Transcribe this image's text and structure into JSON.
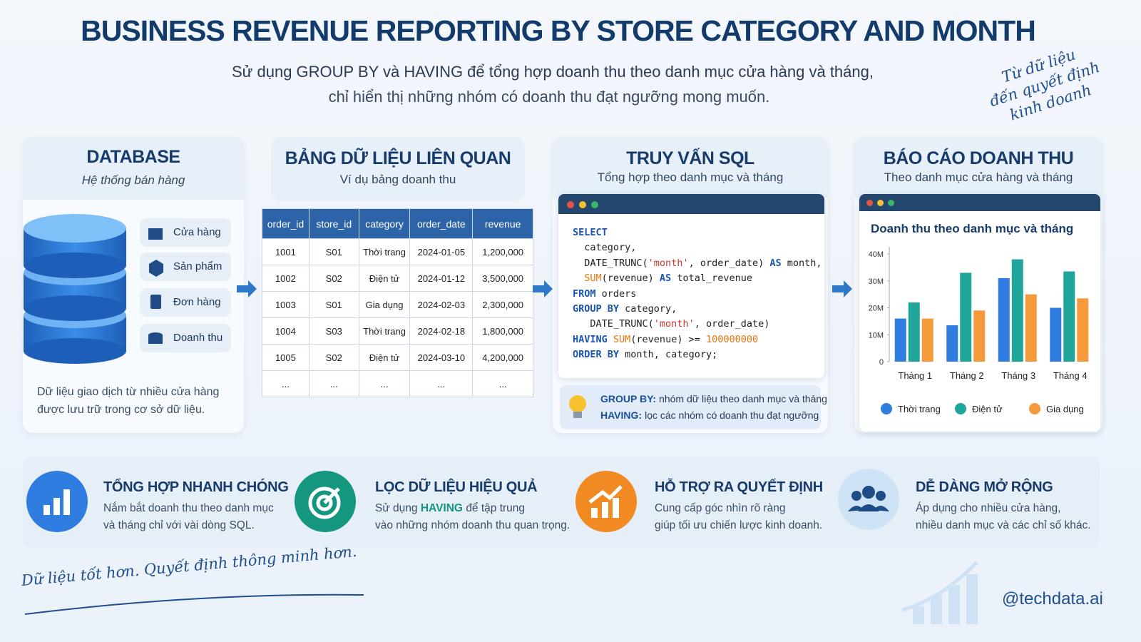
{
  "header": {
    "title": "BUSINESS REVENUE REPORTING BY STORE CATEGORY AND MONTH",
    "subtitle": [
      "Sử dụng GROUP BY và HAVING để tổng hợp doanh thu theo danh mục cửa hàng và tháng,",
      "chỉ hiển thị những nhóm có doanh thu đạt ngưỡng mong muốn."
    ]
  },
  "tagline": [
    "Từ dữ liệu",
    "đến quyết định",
    "kinh doanh"
  ],
  "database": {
    "title": "DATABASE",
    "subtitle": "Hệ thống bán hàng",
    "items": [
      "Cửa hàng",
      "Sản phẩm",
      "Đơn hàng",
      "Doanh thu"
    ],
    "note": [
      "Dữ liệu giao dịch từ nhiều cửa hàng",
      "được lưu trữ trong cơ sở dữ liệu."
    ]
  },
  "table_panel": {
    "title": "BẢNG DỮ LIỆU LIÊN QUAN",
    "subtitle": "Ví dụ bảng doanh thu",
    "table": {
      "columns": [
        "order_id",
        "store_id",
        "category",
        "order_date",
        "revenue"
      ],
      "rows": [
        [
          "1001",
          "S01",
          "Thời trang",
          "2024-01-05",
          "1,200,000"
        ],
        [
          "1002",
          "S02",
          "Điện tử",
          "2024-01-12",
          "3,500,000"
        ],
        [
          "1003",
          "S01",
          "Gia dụng",
          "2024-02-03",
          "2,300,000"
        ],
        [
          "1004",
          "S03",
          "Thời trang",
          "2024-02-18",
          "1,800,000"
        ],
        [
          "1005",
          "S02",
          "Điện tử",
          "2024-03-10",
          "4,200,000"
        ],
        [
          "...",
          "...",
          "...",
          "...",
          "..."
        ]
      ]
    }
  },
  "sql": {
    "title": "TRUY VẤN SQL",
    "subtitle": "Tổng hợp theo danh mục và tháng",
    "code": [
      [
        "SELECT"
      ],
      [
        "  category,"
      ],
      [
        "  DATE_TRUNC(",
        "'month'",
        ", order_date) ",
        "AS",
        " month,"
      ],
      [
        "  SUM",
        "(revenue) ",
        "AS",
        " total_revenue"
      ],
      [
        "FROM",
        " orders"
      ],
      [
        "GROUP BY",
        " category,"
      ],
      [
        "   DATE_TRUNC(",
        "'month'",
        ", order_date)"
      ],
      [
        "HAVING",
        " SUM",
        "(revenue) >= ",
        "100000000"
      ],
      [
        "ORDER BY",
        " month, category;"
      ]
    ],
    "tips": [
      {
        "term": "GROUP BY:",
        "text": "nhóm dữ liệu theo danh mục và tháng"
      },
      {
        "term": "HAVING:",
        "text": "lọc các nhóm có doanh thu đạt ngưỡng"
      }
    ]
  },
  "report": {
    "title": "BÁO CÁO DOANH THU",
    "subtitle": "Theo danh mục cửa hàng và tháng"
  },
  "chart_data": {
    "type": "bar",
    "title": "Doanh thu theo danh mục và tháng",
    "categories": [
      "Tháng 1",
      "Tháng 2",
      "Tháng 3",
      "Tháng 4"
    ],
    "series": [
      {
        "name": "Thời trang",
        "color": "#2f7de1",
        "values": [
          16000000,
          13500000,
          31000000,
          20000000
        ]
      },
      {
        "name": "Điện tử",
        "color": "#1fa59a",
        "values": [
          22000000,
          33000000,
          38000000,
          33500000
        ]
      },
      {
        "name": "Gia dụng",
        "color": "#f59a3a",
        "values": [
          16000000,
          19000000,
          25000000,
          23500000
        ]
      }
    ],
    "ylim": [
      0,
      40000000
    ],
    "yticks": [
      0,
      {
        "value": 10000000,
        "label": "10M"
      },
      {
        "value": 20000000,
        "label": "20M"
      },
      {
        "value": 30000000,
        "label": "30M"
      },
      {
        "value": 40000000,
        "label": "40M"
      }
    ],
    "legend": "bottom"
  },
  "features": [
    {
      "title": "TỔNG HỢP NHANH CHÓNG",
      "lines": [
        [
          "Nắm bắt doanh thu theo danh mục"
        ],
        [
          "và tháng chỉ với vài dòng SQL."
        ]
      ]
    },
    {
      "title": "LỌC DỮ LIỆU HIỆU QUẢ",
      "lines": [
        [
          "Sử dụng",
          "HAVING",
          "để tập trung"
        ],
        [
          "vào những nhóm doanh thu quan trọng."
        ]
      ]
    },
    {
      "title": "HỖ TRỢ RA QUYẾT ĐỊNH",
      "lines": [
        [
          "Cung cấp góc nhìn rõ ràng"
        ],
        [
          "giúp tối ưu chiến lược kinh doanh."
        ]
      ]
    },
    {
      "title": "DỄ DÀNG MỞ RỘNG",
      "lines": [
        [
          "Áp dụng cho nhiều cửa hàng,"
        ],
        [
          "nhiều danh mục và các chỉ số khác."
        ]
      ]
    }
  ],
  "footer": {
    "slogan": "Dữ liệu tốt hơn. Quyết định thông minh hơn.",
    "handle": "@techdata.ai"
  }
}
